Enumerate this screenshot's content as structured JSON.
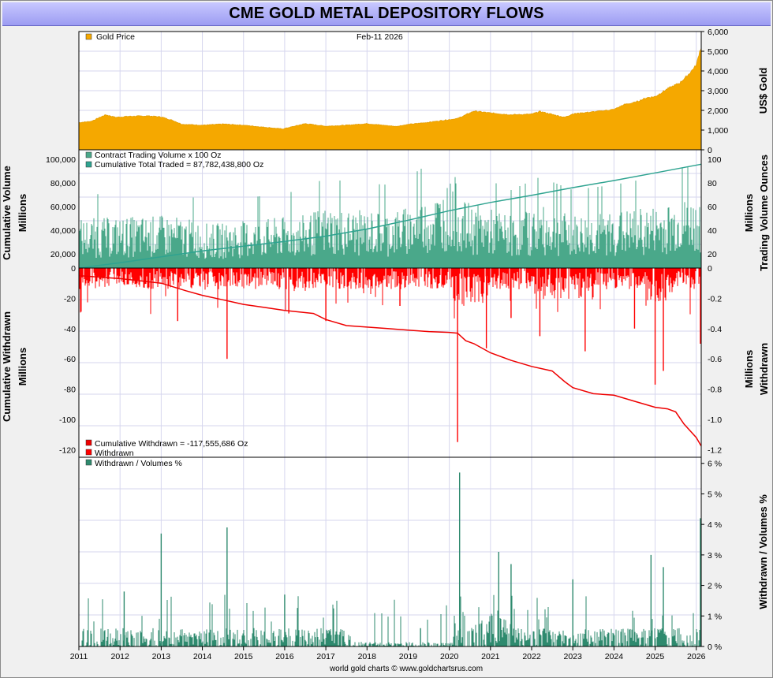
{
  "title": "CME GOLD METAL DEPOSITORY FLOWS",
  "date": "Feb-11  2026",
  "credit": "world gold charts © www.goldchartsrus.com",
  "colors": {
    "gold": "#f5a800",
    "volume": "#4aa88a",
    "cum_traded": "#2ea390",
    "withdrawn": "#ff0000",
    "cum_withdrawn": "#ee0000",
    "ratio": "#2e8a6e",
    "grid": "#d6d6ee"
  },
  "x_axis": {
    "range": [
      2011,
      2026.12
    ],
    "labels": [
      "2011",
      "2012",
      "2013",
      "2014",
      "2015",
      "2016",
      "2017",
      "2018",
      "2019",
      "2020",
      "2021",
      "2022",
      "2023",
      "2024",
      "2025",
      "2026"
    ]
  },
  "axis_titles": {
    "price_right": "US$ Gold",
    "volume_left": [
      "Cumulative Volume",
      "Millions"
    ],
    "volume_right": [
      "Millions",
      "Trading Volume Ounces"
    ],
    "withdrawn_left": [
      "Cumulative Withdrawn",
      "Millions"
    ],
    "withdrawn_right": [
      "Millions",
      "Withdrawn"
    ],
    "ratio_right": "Withdrawn / Volumes %"
  },
  "legends": {
    "gold": "Gold Price",
    "volume": "Contract Trading Volume x 100 Oz",
    "cum_traded": "Cumulative Total Traded = 87,782,438,800 Oz",
    "cum_withdrawn": "Cumulative Withdrawn  = -117,555,686 Oz",
    "withdrawn": "Withdrawn",
    "ratio": "Withdrawn / Volumes %"
  },
  "ticks": {
    "price": [
      "0",
      "1,000",
      "2,000",
      "3,000",
      "4,000",
      "5,000",
      "6,000"
    ],
    "volume_left": [
      "0",
      "20,000",
      "40,000",
      "60,000",
      "80,000",
      "100,000"
    ],
    "volume_right": [
      "0",
      "20",
      "40",
      "60",
      "80",
      "100"
    ],
    "withdrawn_left": [
      "-120",
      "-100",
      "-80",
      "-60",
      "-40",
      "-20"
    ],
    "withdrawn_right": [
      "0.0",
      "-0.2",
      "-0.4",
      "-0.6",
      "-0.8",
      "-1.0",
      "-1.2"
    ],
    "ratio": [
      "0 %",
      "1 %",
      "2 %",
      "3 %",
      "4 %",
      "5 %",
      "6 %"
    ]
  },
  "chart_data": [
    {
      "type": "area",
      "name": "Gold Price",
      "ylabel": "US$ Gold",
      "ylim": [
        0,
        6000
      ],
      "x": [
        2011.0,
        2011.3,
        2011.65,
        2011.9,
        2012.2,
        2012.7,
        2013.0,
        2013.3,
        2013.5,
        2014.0,
        2014.5,
        2015.0,
        2015.5,
        2015.95,
        2016.5,
        2017.0,
        2017.5,
        2018.0,
        2018.7,
        2019.0,
        2019.5,
        2019.9,
        2020.2,
        2020.6,
        2021.0,
        2021.5,
        2022.0,
        2022.2,
        2022.8,
        2023.0,
        2023.5,
        2024.0,
        2024.25,
        2024.5,
        2024.8,
        2025.0,
        2025.3,
        2025.6,
        2025.8,
        2026.0,
        2026.08,
        2026.12
      ],
      "y": [
        1380,
        1450,
        1780,
        1650,
        1700,
        1720,
        1670,
        1480,
        1300,
        1250,
        1310,
        1250,
        1150,
        1060,
        1330,
        1200,
        1250,
        1330,
        1190,
        1290,
        1400,
        1510,
        1590,
        1970,
        1870,
        1780,
        1810,
        1950,
        1650,
        1830,
        1930,
        2050,
        2300,
        2400,
        2650,
        2700,
        3100,
        3400,
        3800,
        4300,
        5000,
        5200
      ]
    },
    {
      "type": "bar",
      "name": "Contract Trading Volume x 100 Oz",
      "ylabel": "Trading Volume Ounces (Millions)",
      "ylim": [
        0,
        100
      ],
      "x": [
        2011.0,
        2013.2,
        2014.2,
        2016.5,
        2017.0,
        2017.5,
        2018.5,
        2019.0,
        2019.5,
        2020.0,
        2020.1,
        2020.3,
        2020.8,
        2021.5,
        2022.2,
        2023.0,
        2024.0,
        2025.0,
        2025.5,
        2026.1
      ],
      "values": [
        28,
        30,
        25,
        30,
        35,
        33,
        32,
        35,
        40,
        48,
        55,
        38,
        35,
        30,
        35,
        30,
        32,
        35,
        38,
        40
      ]
    },
    {
      "type": "line",
      "name": "Cumulative Total Traded",
      "ylabel": "Cumulative Volume Millions",
      "ylim": [
        0,
        100000
      ],
      "x": [
        2011.0,
        2012.0,
        2013.0,
        2014.0,
        2015.0,
        2016.0,
        2017.0,
        2018.0,
        2019.0,
        2020.0,
        2021.0,
        2022.0,
        2023.0,
        2024.0,
        2025.0,
        2026.12
      ],
      "y": [
        0,
        4500,
        9500,
        14500,
        18500,
        22500,
        27000,
        33000,
        40500,
        48500,
        55500,
        61500,
        68000,
        74000,
        80500,
        87782
      ]
    },
    {
      "type": "line",
      "name": "Cumulative Withdrawn",
      "ylabel": "Cumulative Withdrawn Millions",
      "ylim": [
        -125,
        0
      ],
      "x": [
        2011.0,
        2012.0,
        2013.0,
        2013.6,
        2014.0,
        2014.5,
        2015.0,
        2015.5,
        2016.0,
        2016.7,
        2017.0,
        2017.5,
        2018.0,
        2018.5,
        2019.0,
        2019.5,
        2020.0,
        2020.2,
        2020.4,
        2020.6,
        2021.0,
        2021.5,
        2022.0,
        2022.5,
        2022.8,
        2023.0,
        2023.5,
        2024.0,
        2024.5,
        2025.0,
        2025.3,
        2025.5,
        2025.7,
        2026.0,
        2026.12
      ],
      "y": [
        -5,
        -7,
        -10,
        -15,
        -18,
        -21,
        -24,
        -26,
        -28,
        -30,
        -34,
        -38,
        -39,
        -40,
        -41,
        -42,
        -42.5,
        -43,
        -48,
        -50,
        -56,
        -61,
        -65,
        -68,
        -75,
        -79,
        -83,
        -84,
        -88,
        -92,
        -93,
        -95,
        -103,
        -112,
        -117.6
      ]
    },
    {
      "type": "bar",
      "name": "Withdrawn",
      "ylabel": "Withdrawn Millions",
      "ylim": [
        -1.25,
        0
      ],
      "x": [
        2013.4,
        2014.6,
        2016.1,
        2017.0,
        2018.8,
        2020.2,
        2020.9,
        2021.5,
        2022.2,
        2023.3,
        2024.5,
        2025.0,
        2025.2,
        2026.1
      ],
      "values": [
        -0.35,
        -0.6,
        -0.3,
        -0.35,
        -0.25,
        -1.15,
        -0.53,
        -0.33,
        -0.45,
        -0.55,
        -0.4,
        -0.77,
        -0.68,
        -0.5
      ]
    },
    {
      "type": "bar",
      "name": "Withdrawn / Volumes %",
      "ylabel": "Withdrawn / Volumes %",
      "ylim": [
        0,
        6.2
      ],
      "x": [
        2012.1,
        2013.0,
        2014.6,
        2016.0,
        2019.3,
        2020.25,
        2021.2,
        2021.5,
        2023.0,
        2024.9,
        2025.2,
        2026.1
      ],
      "values": [
        1.8,
        3.7,
        3.9,
        1.7,
        0.6,
        5.7,
        3.1,
        2.7,
        2.2,
        3.0,
        2.6,
        4.2
      ]
    }
  ]
}
